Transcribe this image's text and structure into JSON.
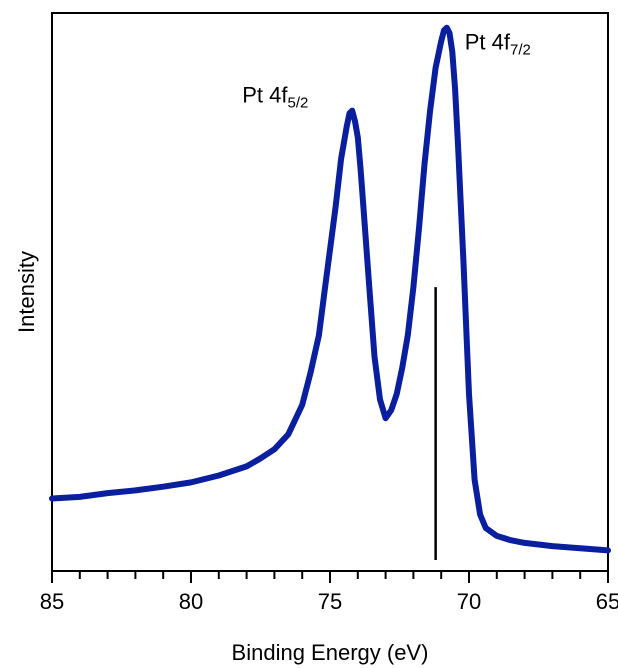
{
  "chart_data": {
    "type": "line",
    "title": "",
    "xlabel": "Binding Energy (eV)",
    "ylabel": "Intensity",
    "xlim": [
      85,
      65
    ],
    "ylim": [
      0,
      1.0
    ],
    "x_reversed": true,
    "grid": false,
    "xticks": [
      {
        "value": 85,
        "label": "85"
      },
      {
        "value": 80,
        "label": "80"
      },
      {
        "value": 75,
        "label": "75"
      },
      {
        "value": 70,
        "label": "70"
      },
      {
        "value": 65,
        "label": "65"
      }
    ],
    "minor_tick_step": 1,
    "series": [
      {
        "color": "#0a1f9e",
        "x": [
          85.0,
          84.0,
          83.0,
          82.0,
          81.0,
          80.0,
          79.0,
          78.0,
          77.5,
          77.0,
          76.5,
          76.0,
          75.7,
          75.4,
          75.2,
          75.0,
          74.8,
          74.6,
          74.4,
          74.3,
          74.2,
          74.1,
          74.0,
          73.9,
          73.8,
          73.6,
          73.4,
          73.2,
          73.0,
          72.8,
          72.6,
          72.4,
          72.2,
          72.0,
          71.8,
          71.6,
          71.4,
          71.2,
          71.0,
          70.9,
          70.8,
          70.7,
          70.6,
          70.5,
          70.4,
          70.2,
          70.0,
          69.8,
          69.6,
          69.4,
          69.0,
          68.5,
          68.0,
          67.0,
          66.0,
          65.0
        ],
        "y": [
          0.115,
          0.118,
          0.125,
          0.13,
          0.137,
          0.145,
          0.158,
          0.175,
          0.19,
          0.207,
          0.235,
          0.29,
          0.35,
          0.42,
          0.5,
          0.58,
          0.66,
          0.75,
          0.81,
          0.835,
          0.84,
          0.82,
          0.79,
          0.73,
          0.66,
          0.52,
          0.38,
          0.3,
          0.265,
          0.28,
          0.31,
          0.36,
          0.42,
          0.51,
          0.62,
          0.74,
          0.84,
          0.92,
          0.97,
          0.99,
          0.995,
          0.985,
          0.95,
          0.88,
          0.78,
          0.56,
          0.31,
          0.15,
          0.085,
          0.06,
          0.045,
          0.037,
          0.032,
          0.026,
          0.022,
          0.018
        ]
      }
    ],
    "reference_line": {
      "x": 71.2,
      "y_top": 0.51,
      "y_bottom": 0.0,
      "color": "#000000"
    },
    "annotations": [
      {
        "label_main": "Pt 4f",
        "label_sub": "5/2",
        "x": 74.2,
        "y": 0.84
      },
      {
        "label_main": "Pt 4f",
        "label_sub": "7/2",
        "x": 70.8,
        "y": 0.995
      }
    ]
  }
}
